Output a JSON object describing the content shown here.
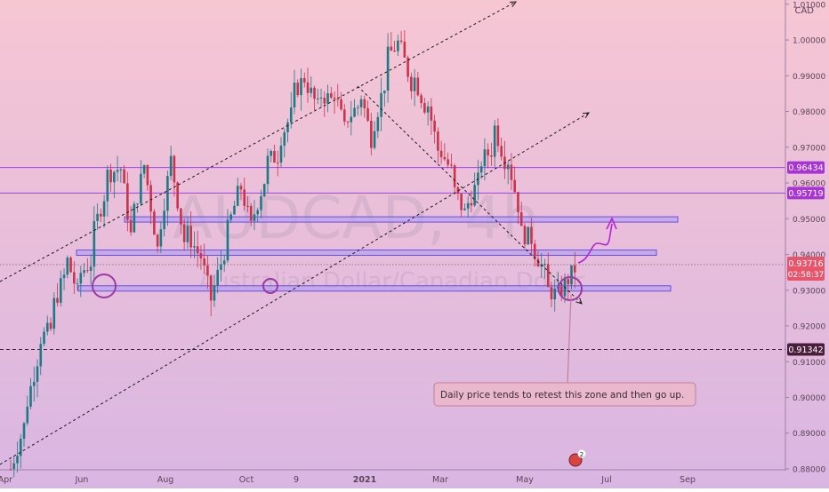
{
  "symbol": {
    "ticker": "AUDCAD, 4h",
    "description": "Australian Dollar/Canadian Dollar",
    "currency": "CAD"
  },
  "colors": {
    "bg_top": "#f6c6d3",
    "bg_bottom": "#d9b6e2",
    "up": "#1e7a82",
    "down": "#c9344a",
    "zone_fill": "#b9a3ee",
    "zone_stroke": "#6b4fe0",
    "level_line": "#a040e8",
    "level_label": "#a934d6",
    "current_label": "#e8556b",
    "dark_label": "#4a1e3a",
    "trend": "#1a1a1a",
    "note_fill": "#eab8cc",
    "note_stroke": "#c07f9c",
    "projection": "#b522d6"
  },
  "chart_data": {
    "type": "candlestick",
    "title": "AUDCAD, 4h",
    "y_axis_side": "right",
    "ylim": [
      0.8795,
      1.0112
    ],
    "y_ticks": [
      "1.01000",
      "1.00000",
      "0.99000",
      "0.98000",
      "0.97000",
      "0.96000",
      "0.95000",
      "0.94000",
      "0.93000",
      "0.92000",
      "0.91000",
      "0.90000",
      "0.89000",
      "0.88000"
    ],
    "x_ticks": [
      "Apr",
      "Jun",
      "Aug",
      "Oct",
      "9",
      "2021",
      "Mar",
      "May",
      "Jul",
      "Sep"
    ],
    "price_path": [
      [
        0.88,
        0.88
      ],
      [
        0.892,
        0.895
      ],
      [
        0.911,
        0.916
      ],
      [
        0.919,
        0.924
      ],
      [
        0.934,
        0.941
      ],
      [
        0.929,
        0.934
      ],
      [
        0.938,
        0.944
      ],
      [
        0.957,
        0.962
      ],
      [
        0.964,
        0.969
      ],
      [
        0.944,
        0.949
      ],
      [
        0.966,
        0.964
      ],
      [
        0.94,
        0.945
      ],
      [
        0.968,
        0.965
      ],
      [
        0.942,
        0.947
      ],
      [
        0.94,
        0.942
      ],
      [
        0.926,
        0.929
      ],
      [
        0.942,
        0.945
      ],
      [
        0.958,
        0.961
      ],
      [
        0.946,
        0.95
      ],
      [
        0.962,
        0.966
      ],
      [
        0.968,
        0.972
      ],
      [
        0.98,
        0.985
      ],
      [
        0.99,
        0.988
      ],
      [
        0.98,
        0.985
      ],
      [
        0.983,
        0.987
      ],
      [
        0.973,
        0.978
      ],
      [
        0.982,
        0.986
      ],
      [
        0.97,
        0.976
      ],
      [
        0.99,
        0.995
      ],
      [
        1.0,
        0.998
      ],
      [
        0.986,
        0.99
      ],
      [
        0.98,
        0.983
      ],
      [
        0.966,
        0.969
      ],
      [
        0.962,
        0.958
      ],
      [
        0.95,
        0.954
      ],
      [
        0.962,
        0.966
      ],
      [
        0.97,
        0.976
      ],
      [
        0.964,
        0.967
      ],
      [
        0.95,
        0.946
      ],
      [
        0.944,
        0.941
      ],
      [
        0.933,
        0.93
      ],
      [
        0.928,
        0.93
      ],
      [
        0.936,
        0.937
      ]
    ],
    "current_price": 0.93716,
    "countdown": "02:58:37",
    "levels": [
      {
        "price": 0.96434,
        "label": "0.96434"
      },
      {
        "price": 0.95719,
        "label": "0.95719"
      },
      {
        "price": 0.91342,
        "label": "0.91342",
        "style": "dashed"
      }
    ],
    "zones": [
      {
        "price": 0.9498
      },
      {
        "price": 0.9405
      },
      {
        "price": 0.9305
      }
    ],
    "annotation": "Daily price tends to retest this zone and then go up.",
    "event_badge": "2"
  }
}
